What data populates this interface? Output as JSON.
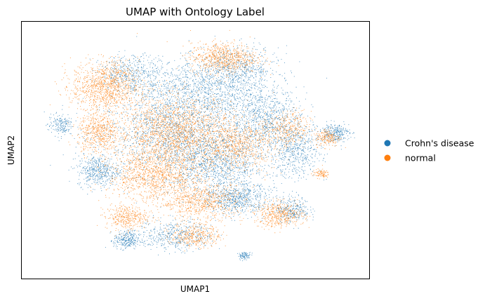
{
  "chart_data": {
    "type": "scatter",
    "title": "UMAP with Ontology Label",
    "xlabel": "UMAP1",
    "ylabel": "UMAP2",
    "grid": false,
    "ticks_shown": false,
    "legend": {
      "placement": "right-outside",
      "entries": [
        {
          "label": "Crohn's disease",
          "color": "#1f77b4"
        },
        {
          "label": "normal",
          "color": "#ff7f0e"
        }
      ]
    },
    "xlim": [
      0,
      100
    ],
    "ylim": [
      0,
      100
    ],
    "series": [
      {
        "name": "Crohn's disease",
        "color": "#1f77b4",
        "clusters": [
          {
            "cx": 44,
            "cy": 56,
            "sx": 18,
            "sy": 13,
            "w": 0.18
          },
          {
            "cx": 52,
            "cy": 73,
            "sx": 16,
            "sy": 10,
            "w": 0.14
          },
          {
            "cx": 62,
            "cy": 82,
            "sx": 10,
            "sy": 7,
            "w": 0.06
          },
          {
            "cx": 32,
            "cy": 80,
            "sx": 8,
            "sy": 6,
            "w": 0.05
          },
          {
            "cx": 70,
            "cy": 62,
            "sx": 8,
            "sy": 10,
            "w": 0.08
          },
          {
            "cx": 79,
            "cy": 50,
            "sx": 6,
            "sy": 9,
            "w": 0.06
          },
          {
            "cx": 90,
            "cy": 57,
            "sx": 3.5,
            "sy": 3,
            "w": 0.03
          },
          {
            "cx": 62,
            "cy": 31,
            "sx": 8,
            "sy": 5,
            "w": 0.07
          },
          {
            "cx": 44,
            "cy": 17,
            "sx": 9,
            "sy": 5,
            "w": 0.05
          },
          {
            "cx": 30,
            "cy": 15,
            "sx": 3,
            "sy": 3,
            "w": 0.03
          },
          {
            "cx": 22,
            "cy": 42,
            "sx": 5,
            "sy": 5,
            "w": 0.05
          },
          {
            "cx": 11,
            "cy": 60,
            "sx": 3,
            "sy": 3.5,
            "w": 0.02
          },
          {
            "cx": 78,
            "cy": 27,
            "sx": 4,
            "sy": 4,
            "w": 0.03
          },
          {
            "cx": 56,
            "cy": 44,
            "sx": 12,
            "sy": 10,
            "w": 0.12
          },
          {
            "cx": 64,
            "cy": 9,
            "sx": 1.5,
            "sy": 1.2,
            "w": 0.01
          }
        ]
      },
      {
        "name": "normal",
        "color": "#ff7f0e",
        "clusters": [
          {
            "cx": 44,
            "cy": 57,
            "sx": 14,
            "sy": 12,
            "w": 0.22
          },
          {
            "cx": 24,
            "cy": 75,
            "sx": 8,
            "sy": 8,
            "w": 0.12
          },
          {
            "cx": 58,
            "cy": 86,
            "sx": 8,
            "sy": 5,
            "w": 0.08
          },
          {
            "cx": 22,
            "cy": 57,
            "sx": 5,
            "sy": 7,
            "w": 0.06
          },
          {
            "cx": 38,
            "cy": 40,
            "sx": 11,
            "sy": 8,
            "w": 0.12
          },
          {
            "cx": 52,
            "cy": 30,
            "sx": 10,
            "sy": 6,
            "w": 0.08
          },
          {
            "cx": 74,
            "cy": 25,
            "sx": 6,
            "sy": 4,
            "w": 0.05
          },
          {
            "cx": 62,
            "cy": 52,
            "sx": 9,
            "sy": 8,
            "w": 0.08
          },
          {
            "cx": 50,
            "cy": 17,
            "sx": 6,
            "sy": 4,
            "w": 0.04
          },
          {
            "cx": 76,
            "cy": 58,
            "sx": 6,
            "sy": 6,
            "w": 0.04
          },
          {
            "cx": 88,
            "cy": 55,
            "sx": 3,
            "sy": 3,
            "w": 0.02
          },
          {
            "cx": 30,
            "cy": 24,
            "sx": 5,
            "sy": 4,
            "w": 0.04
          },
          {
            "cx": 86,
            "cy": 41,
            "sx": 2,
            "sy": 1.5,
            "w": 0.01
          }
        ]
      }
    ]
  }
}
